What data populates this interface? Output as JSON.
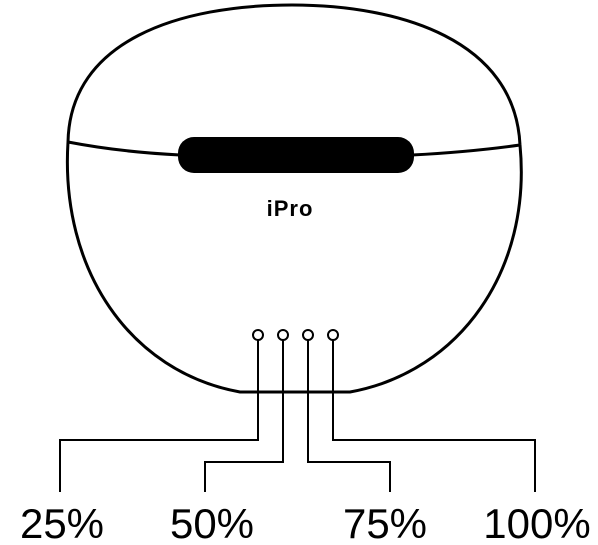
{
  "brand": "iPro",
  "indicators": [
    {
      "label": "25%"
    },
    {
      "label": "50%"
    },
    {
      "label": "75%"
    },
    {
      "label": "100%"
    }
  ]
}
